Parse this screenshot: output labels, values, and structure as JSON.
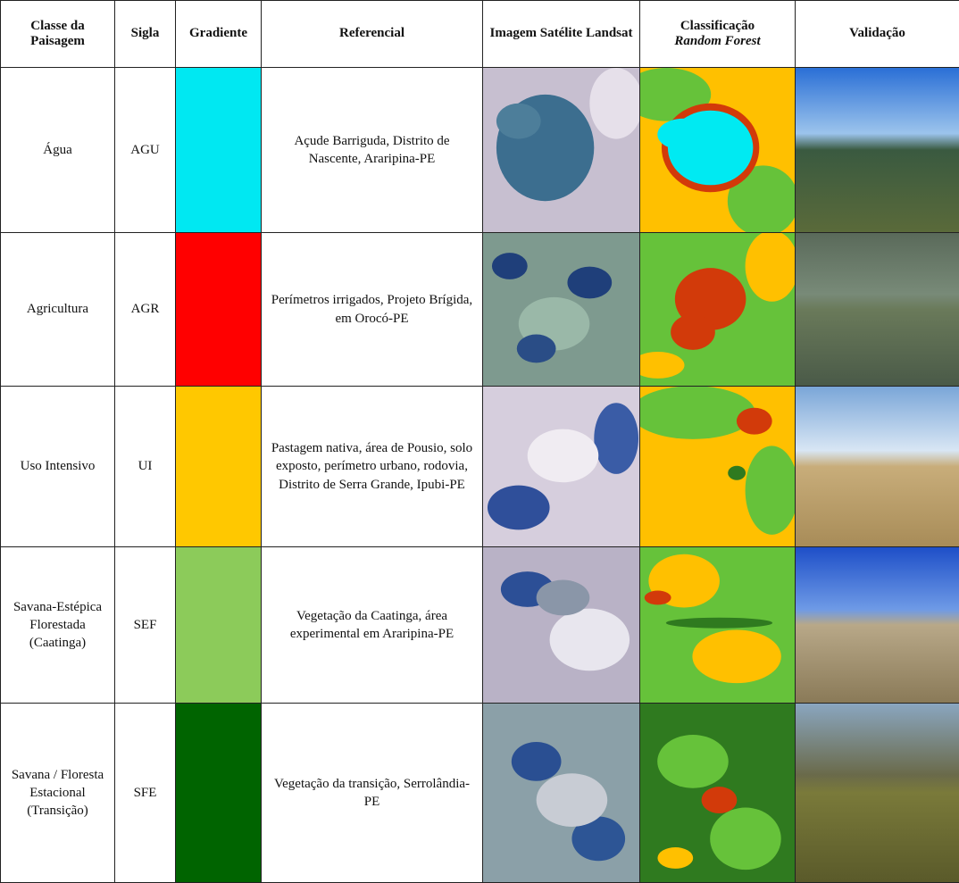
{
  "table": {
    "headers": [
      "Classe da Paisagem",
      "Sigla",
      "Gradiente",
      "Referencial",
      "Imagem Satélite Landsat",
      "Classificação",
      "Validação"
    ],
    "header_emphasis": "Random Forest",
    "rows": [
      {
        "classe": "Água",
        "sigla": "AGU",
        "color": "#00e8f2",
        "referencial": "Açude Barriguda, Distrito de Nascente, Araripina-PE"
      },
      {
        "classe": "Agricultura",
        "sigla": "AGR",
        "color": "#ff0000",
        "referencial": "Perímetros irrigados, Projeto Brígida, em Orocó-PE"
      },
      {
        "classe": "Uso Intensivo",
        "sigla": "UI",
        "color": "#ffc800",
        "referencial": "Pastagem nativa, área de Pousio, solo exposto, perímetro urbano, rodovia, Distrito de Serra Grande, Ipubi-PE"
      },
      {
        "classe": "Savana-Estépica Florestada (Caatinga)",
        "sigla": "SEF",
        "color": "#8ccb5a",
        "referencial": "Vegetação da Caatinga, área experimental em Araripina-PE"
      },
      {
        "classe": "Savana / Floresta Estacional (Transição)",
        "sigla": "SFE",
        "color": "#006400",
        "referencial": "Vegetação da transição, Serrolândia-PE"
      }
    ]
  }
}
